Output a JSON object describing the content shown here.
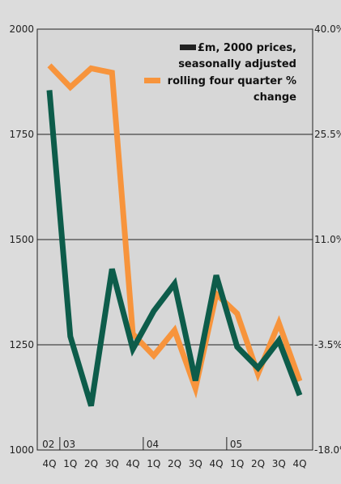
{
  "chart_data": {
    "type": "line",
    "categories": [
      "4Q",
      "1Q",
      "2Q",
      "3Q",
      "4Q",
      "1Q",
      "2Q",
      "3Q",
      "4Q",
      "1Q",
      "2Q",
      "3Q",
      "4Q"
    ],
    "year_labels": [
      {
        "label": "02",
        "from": 0,
        "to": 0
      },
      {
        "label": "03",
        "from": 1,
        "to": 4
      },
      {
        "label": "04",
        "from": 5,
        "to": 8
      },
      {
        "label": "05",
        "from": 9,
        "to": 12
      }
    ],
    "left_axis": {
      "ylim": [
        1000,
        2000
      ],
      "ticks": [
        "2000",
        "1750",
        "1500",
        "1250",
        "1000"
      ],
      "tick_values": [
        2000,
        1750,
        1500,
        1250,
        1000
      ]
    },
    "right_axis": {
      "ylim": [
        -18.0,
        40.0
      ],
      "ticks": [
        "40.0%",
        "25.5%",
        "11.0%",
        "-3.5%",
        "-18.0%"
      ],
      "tick_values": [
        40.0,
        25.5,
        11.0,
        -3.5,
        -18.0
      ]
    },
    "grid": true,
    "legend_position": "top-right",
    "series": [
      {
        "name": "£m, 2000 prices, seasonally adjusted",
        "legend_lines": [
          "£m, 2000 prices,",
          "seasonally adjusted"
        ],
        "axis": "left",
        "color": "#0d5c4a",
        "values": [
          1855,
          1270,
          1105,
          1430,
          1240,
          1330,
          1395,
          1165,
          1415,
          1245,
          1195,
          1260,
          1130
        ]
      },
      {
        "name": "rolling four quarter % change",
        "legend_lines": [
          "rolling four quarter %",
          "change"
        ],
        "axis": "right",
        "color": "#f7943c",
        "values": [
          35.0,
          32.0,
          34.6,
          34.0,
          -2.0,
          -5.0,
          -1.5,
          -9.5,
          3.5,
          0.8,
          -7.5,
          -0.5,
          -8.5
        ]
      }
    ]
  }
}
